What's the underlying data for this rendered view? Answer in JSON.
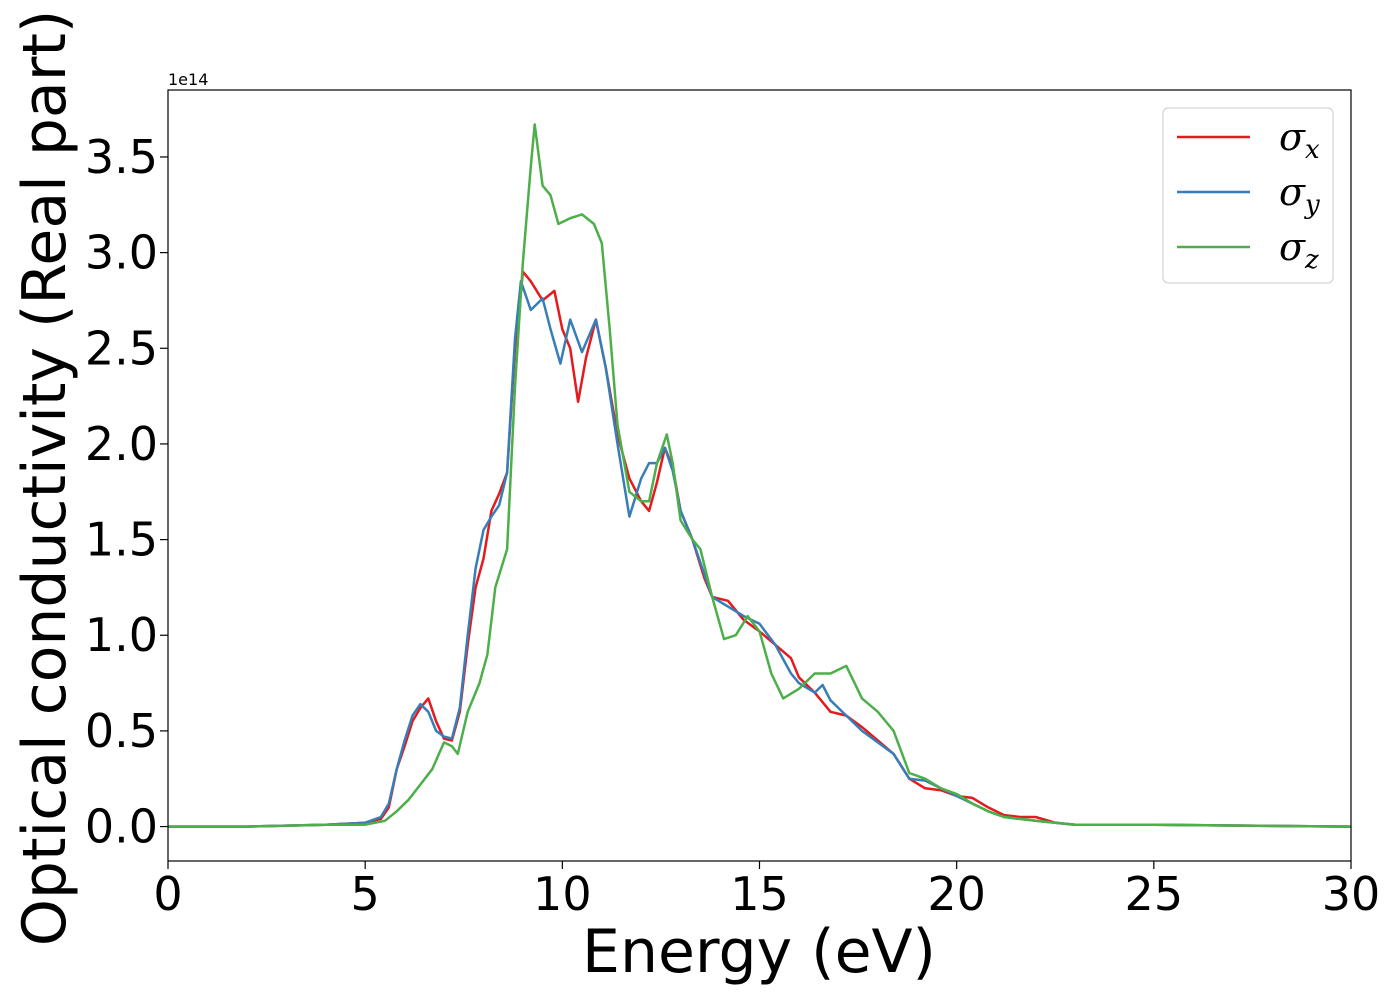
{
  "chart_data": {
    "type": "line",
    "xlabel": "Energy (eV)",
    "ylabel": "Optical conductivity (Real part)",
    "y_offset_label": "1e14",
    "xlim": [
      0,
      30
    ],
    "ylim": [
      -0.18,
      3.85
    ],
    "x_ticks": [
      0,
      5,
      10,
      15,
      20,
      25,
      30
    ],
    "x_tick_labels": [
      "0",
      "5",
      "10",
      "15",
      "20",
      "25",
      "30"
    ],
    "y_ticks": [
      0.0,
      0.5,
      1.0,
      1.5,
      2.0,
      2.5,
      3.0,
      3.5
    ],
    "y_tick_labels": [
      "0.0",
      "0.5",
      "1.0",
      "1.5",
      "2.0",
      "2.5",
      "3.0",
      "3.5"
    ],
    "grid": false,
    "legend_position": "top-right",
    "series": [
      {
        "name": "σx",
        "symbol": "σ",
        "subscript": "x",
        "color": "#e41a1c",
        "points": [
          [
            0,
            0.0
          ],
          [
            2,
            0.0
          ],
          [
            4,
            0.01
          ],
          [
            5,
            0.02
          ],
          [
            5.4,
            0.04
          ],
          [
            5.6,
            0.1
          ],
          [
            5.8,
            0.3
          ],
          [
            6.0,
            0.42
          ],
          [
            6.2,
            0.55
          ],
          [
            6.4,
            0.62
          ],
          [
            6.6,
            0.67
          ],
          [
            6.8,
            0.55
          ],
          [
            7.0,
            0.46
          ],
          [
            7.2,
            0.45
          ],
          [
            7.4,
            0.6
          ],
          [
            7.6,
            0.95
          ],
          [
            7.8,
            1.25
          ],
          [
            8.0,
            1.4
          ],
          [
            8.2,
            1.65
          ],
          [
            8.4,
            1.74
          ],
          [
            8.6,
            1.85
          ],
          [
            8.8,
            2.5
          ],
          [
            9.0,
            2.9
          ],
          [
            9.2,
            2.85
          ],
          [
            9.5,
            2.75
          ],
          [
            9.8,
            2.8
          ],
          [
            10.0,
            2.6
          ],
          [
            10.2,
            2.5
          ],
          [
            10.4,
            2.22
          ],
          [
            10.6,
            2.45
          ],
          [
            10.85,
            2.65
          ],
          [
            11.1,
            2.4
          ],
          [
            11.4,
            2.05
          ],
          [
            11.7,
            1.82
          ],
          [
            12.0,
            1.7
          ],
          [
            12.2,
            1.65
          ],
          [
            12.4,
            1.8
          ],
          [
            12.6,
            1.98
          ],
          [
            12.8,
            1.88
          ],
          [
            13.0,
            1.65
          ],
          [
            13.3,
            1.5
          ],
          [
            13.6,
            1.3
          ],
          [
            13.8,
            1.2
          ],
          [
            14.2,
            1.18
          ],
          [
            14.6,
            1.08
          ],
          [
            15.0,
            1.02
          ],
          [
            15.4,
            0.95
          ],
          [
            15.8,
            0.88
          ],
          [
            16.0,
            0.78
          ],
          [
            16.4,
            0.7
          ],
          [
            16.6,
            0.65
          ],
          [
            16.8,
            0.6
          ],
          [
            17.2,
            0.58
          ],
          [
            17.6,
            0.52
          ],
          [
            18.0,
            0.45
          ],
          [
            18.4,
            0.38
          ],
          [
            18.8,
            0.25
          ],
          [
            19.2,
            0.2
          ],
          [
            19.6,
            0.19
          ],
          [
            20.0,
            0.16
          ],
          [
            20.4,
            0.15
          ],
          [
            20.8,
            0.1
          ],
          [
            21.2,
            0.06
          ],
          [
            21.6,
            0.05
          ],
          [
            22.0,
            0.05
          ],
          [
            22.5,
            0.02
          ],
          [
            23,
            0.01
          ],
          [
            25,
            0.01
          ],
          [
            30,
            0.0
          ]
        ]
      },
      {
        "name": "σy",
        "symbol": "σ",
        "subscript": "y",
        "color": "#377eb8",
        "points": [
          [
            0,
            0.0
          ],
          [
            2,
            0.0
          ],
          [
            4,
            0.01
          ],
          [
            5,
            0.02
          ],
          [
            5.4,
            0.05
          ],
          [
            5.6,
            0.12
          ],
          [
            5.8,
            0.3
          ],
          [
            6.0,
            0.45
          ],
          [
            6.2,
            0.58
          ],
          [
            6.4,
            0.64
          ],
          [
            6.6,
            0.6
          ],
          [
            6.8,
            0.5
          ],
          [
            7.0,
            0.47
          ],
          [
            7.2,
            0.46
          ],
          [
            7.4,
            0.62
          ],
          [
            7.6,
            1.0
          ],
          [
            7.8,
            1.35
          ],
          [
            8.0,
            1.55
          ],
          [
            8.2,
            1.62
          ],
          [
            8.4,
            1.68
          ],
          [
            8.6,
            1.85
          ],
          [
            8.8,
            2.55
          ],
          [
            8.95,
            2.85
          ],
          [
            9.2,
            2.7
          ],
          [
            9.5,
            2.76
          ],
          [
            9.7,
            2.6
          ],
          [
            9.95,
            2.42
          ],
          [
            10.2,
            2.65
          ],
          [
            10.5,
            2.48
          ],
          [
            10.85,
            2.65
          ],
          [
            11.1,
            2.4
          ],
          [
            11.4,
            2.0
          ],
          [
            11.7,
            1.62
          ],
          [
            12.0,
            1.82
          ],
          [
            12.2,
            1.9
          ],
          [
            12.4,
            1.9
          ],
          [
            12.6,
            1.98
          ],
          [
            12.8,
            1.86
          ],
          [
            13.0,
            1.65
          ],
          [
            13.3,
            1.5
          ],
          [
            13.6,
            1.32
          ],
          [
            13.8,
            1.2
          ],
          [
            14.2,
            1.15
          ],
          [
            14.6,
            1.1
          ],
          [
            15.0,
            1.06
          ],
          [
            15.4,
            0.95
          ],
          [
            15.8,
            0.8
          ],
          [
            16.0,
            0.75
          ],
          [
            16.4,
            0.7
          ],
          [
            16.6,
            0.74
          ],
          [
            16.8,
            0.66
          ],
          [
            17.2,
            0.58
          ],
          [
            17.6,
            0.5
          ],
          [
            18.0,
            0.44
          ],
          [
            18.4,
            0.38
          ],
          [
            18.8,
            0.25
          ],
          [
            19.2,
            0.24
          ],
          [
            19.6,
            0.2
          ],
          [
            20.0,
            0.16
          ],
          [
            20.4,
            0.12
          ],
          [
            20.8,
            0.08
          ],
          [
            21.2,
            0.05
          ],
          [
            21.6,
            0.04
          ],
          [
            22.0,
            0.03
          ],
          [
            22.5,
            0.02
          ],
          [
            23,
            0.01
          ],
          [
            25,
            0.01
          ],
          [
            30,
            0.0
          ]
        ]
      },
      {
        "name": "σz",
        "symbol": "σ",
        "subscript": "z",
        "color": "#4daf4a",
        "points": [
          [
            0,
            0.0
          ],
          [
            2,
            0.0
          ],
          [
            4,
            0.01
          ],
          [
            5,
            0.01
          ],
          [
            5.5,
            0.03
          ],
          [
            5.8,
            0.08
          ],
          [
            6.1,
            0.14
          ],
          [
            6.4,
            0.22
          ],
          [
            6.7,
            0.3
          ],
          [
            7.0,
            0.44
          ],
          [
            7.2,
            0.42
          ],
          [
            7.35,
            0.38
          ],
          [
            7.6,
            0.6
          ],
          [
            7.9,
            0.75
          ],
          [
            8.1,
            0.9
          ],
          [
            8.3,
            1.25
          ],
          [
            8.6,
            1.45
          ],
          [
            8.8,
            2.3
          ],
          [
            9.0,
            2.95
          ],
          [
            9.2,
            3.45
          ],
          [
            9.3,
            3.67
          ],
          [
            9.5,
            3.35
          ],
          [
            9.7,
            3.3
          ],
          [
            9.9,
            3.15
          ],
          [
            10.2,
            3.18
          ],
          [
            10.5,
            3.2
          ],
          [
            10.8,
            3.15
          ],
          [
            11.0,
            3.05
          ],
          [
            11.2,
            2.6
          ],
          [
            11.4,
            2.1
          ],
          [
            11.7,
            1.75
          ],
          [
            12.0,
            1.7
          ],
          [
            12.2,
            1.7
          ],
          [
            12.4,
            1.9
          ],
          [
            12.65,
            2.05
          ],
          [
            12.8,
            1.9
          ],
          [
            13.0,
            1.6
          ],
          [
            13.3,
            1.5
          ],
          [
            13.5,
            1.45
          ],
          [
            13.8,
            1.2
          ],
          [
            14.1,
            0.98
          ],
          [
            14.4,
            1.0
          ],
          [
            14.7,
            1.1
          ],
          [
            15.0,
            1.02
          ],
          [
            15.3,
            0.8
          ],
          [
            15.6,
            0.67
          ],
          [
            16.0,
            0.72
          ],
          [
            16.4,
            0.8
          ],
          [
            16.8,
            0.8
          ],
          [
            17.2,
            0.84
          ],
          [
            17.6,
            0.67
          ],
          [
            18.0,
            0.6
          ],
          [
            18.4,
            0.5
          ],
          [
            18.8,
            0.28
          ],
          [
            19.2,
            0.25
          ],
          [
            19.6,
            0.2
          ],
          [
            20.0,
            0.17
          ],
          [
            20.4,
            0.12
          ],
          [
            20.8,
            0.08
          ],
          [
            21.2,
            0.05
          ],
          [
            21.6,
            0.04
          ],
          [
            22.0,
            0.03
          ],
          [
            22.5,
            0.02
          ],
          [
            23,
            0.01
          ],
          [
            25,
            0.01
          ],
          [
            30,
            0.0
          ]
        ]
      }
    ]
  }
}
